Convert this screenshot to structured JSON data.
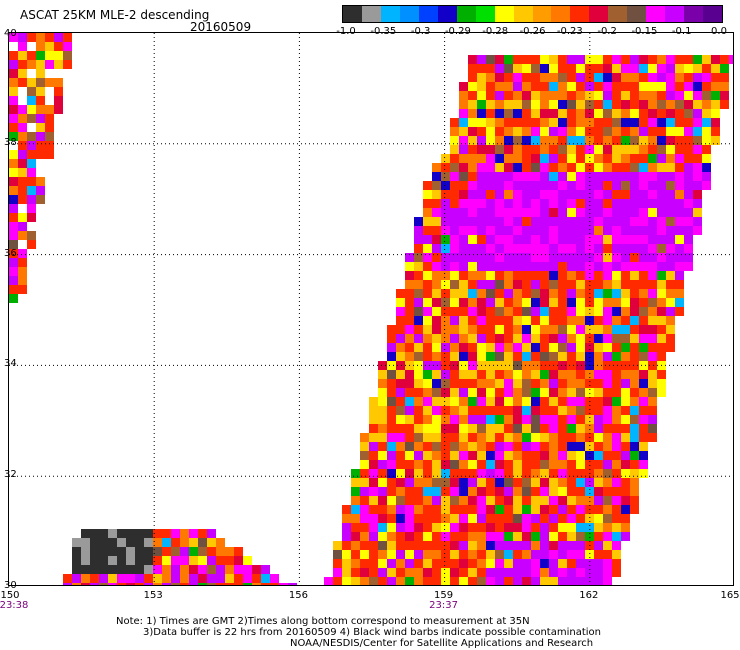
{
  "header": {
    "title": "ASCAT 25KM MLE-2 descending",
    "date": "20160509"
  },
  "colorbar": {
    "colors": [
      "#2e2e2e",
      "#9a9a9a",
      "#00b4ff",
      "#0090ff",
      "#0040ff",
      "#1200c8",
      "#00b000",
      "#00e000",
      "#ffff00",
      "#ffc800",
      "#ff9c00",
      "#ff7800",
      "#ff2a00",
      "#e0003c",
      "#a06030",
      "#705040",
      "#ff00ff",
      "#c800ff",
      "#7a00aa",
      "#5a0090"
    ],
    "tick_labels": [
      "-1.0",
      "-0.35",
      "-0.3",
      "-0.29",
      "-0.28",
      "-0.26",
      "-0.23",
      "-0.2",
      "-0.15",
      "-0.1",
      "0.0"
    ]
  },
  "map": {
    "lon_min": 150,
    "lon_max": 165,
    "lat_min": 30,
    "lat_max": 40,
    "x_ticks": [
      "150",
      "153",
      "156",
      "159",
      "162",
      "165"
    ],
    "y_ticks": [
      "40",
      "38",
      "36",
      "34",
      "32",
      "30"
    ],
    "time_labels": [
      {
        "lon": 150,
        "text": "23:38"
      },
      {
        "lon": 159,
        "text": "23:37"
      }
    ]
  },
  "notes": {
    "line1": "Note: 1) Times are GMT 2)Times along bottom correspond to measurement at 35N",
    "line2": "3)Data buffer is 22 hrs from 20160509 4) Black wind barbs indicate possible contamination",
    "line3": "NOAA/NESDIS/Center for Satellite Applications and Research"
  }
}
